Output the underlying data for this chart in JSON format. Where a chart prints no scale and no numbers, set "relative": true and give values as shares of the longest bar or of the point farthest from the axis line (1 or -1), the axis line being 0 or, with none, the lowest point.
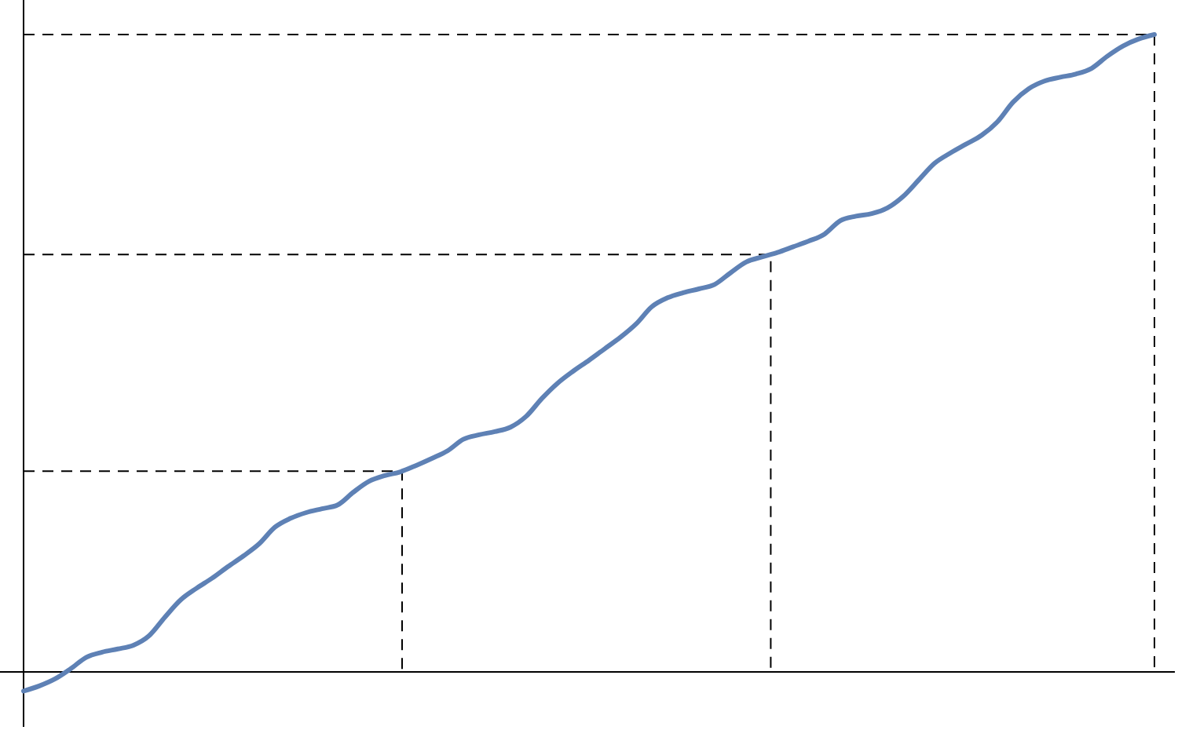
{
  "chart_data": {
    "type": "line",
    "relative": true,
    "color": "#5e81b5",
    "categories": [
      null,
      null,
      null,
      null,
      null,
      null,
      null,
      null,
      null,
      null,
      null,
      null,
      null,
      null,
      null,
      null,
      null,
      null,
      null,
      null,
      null,
      null,
      null,
      null,
      null,
      null,
      null,
      null,
      null,
      null,
      null,
      null,
      null,
      null,
      null,
      null,
      null,
      null,
      null,
      null,
      null,
      null,
      null,
      null,
      null,
      null,
      null,
      null,
      null,
      null,
      null,
      null,
      null,
      null,
      null,
      null,
      null,
      null,
      null,
      null,
      null,
      null,
      null,
      null,
      null,
      null,
      null,
      null,
      null,
      null,
      null,
      null,
      null
    ],
    "values": [
      -0.03,
      -0.022,
      -0.011,
      0.005,
      0.023,
      0.031,
      0.036,
      0.042,
      0.057,
      0.086,
      0.113,
      0.131,
      0.147,
      0.165,
      0.182,
      0.201,
      0.227,
      0.241,
      0.25,
      0.256,
      0.262,
      0.282,
      0.299,
      0.308,
      0.314,
      0.324,
      0.335,
      0.347,
      0.365,
      0.372,
      0.377,
      0.384,
      0.401,
      0.429,
      0.453,
      0.472,
      0.489,
      0.507,
      0.525,
      0.546,
      0.573,
      0.587,
      0.595,
      0.601,
      0.608,
      0.626,
      0.643,
      0.651,
      0.658,
      0.667,
      0.676,
      0.687,
      0.708,
      0.715,
      0.719,
      0.728,
      0.746,
      0.772,
      0.798,
      0.814,
      0.828,
      0.842,
      0.863,
      0.894,
      0.915,
      0.927,
      0.933,
      0.938,
      0.947,
      0.966,
      0.982,
      0.993,
      1.0
    ],
    "ref_lines": [
      {
        "axis": "y",
        "value": 0.315,
        "color": "#000000",
        "line_style": "dashed"
      },
      {
        "axis": "y",
        "value": 0.655,
        "color": "#000000",
        "line_style": "dashed"
      },
      {
        "axis": "y",
        "value": 1.0,
        "color": "#000000",
        "line_style": "dashed"
      }
    ]
  }
}
